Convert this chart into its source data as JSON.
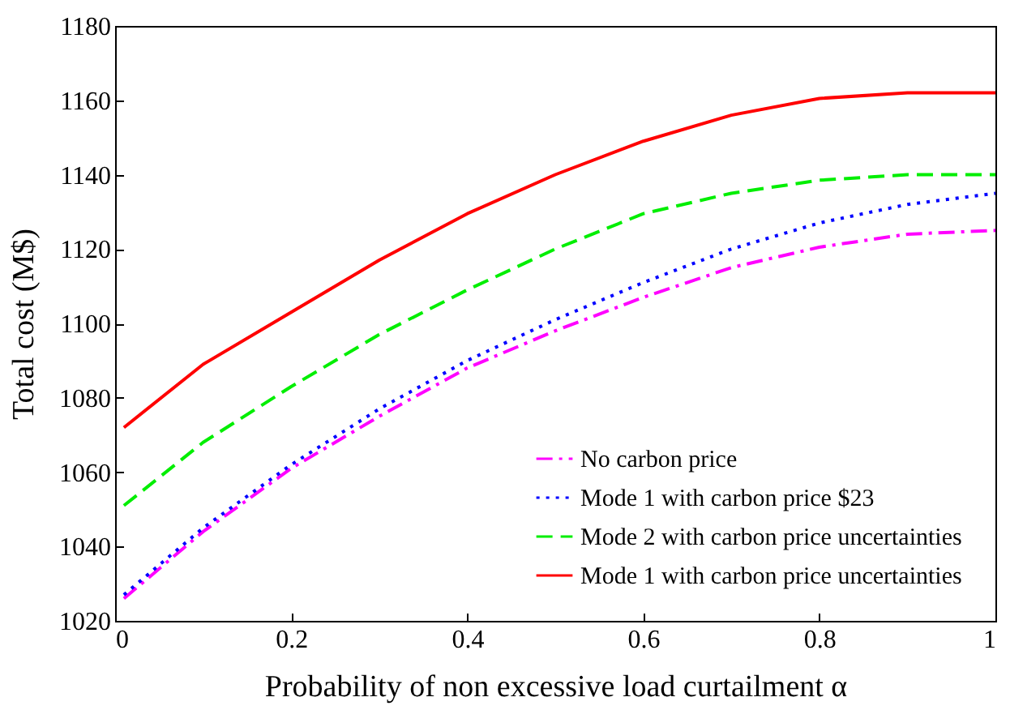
{
  "chart_data": {
    "type": "line",
    "xlabel": "Probability of non excessive load curtailment α",
    "ylabel": "Total cost (M$)",
    "x": [
      0.01,
      0.1,
      0.2,
      0.3,
      0.4,
      0.5,
      0.6,
      0.7,
      0.8,
      0.9,
      1.0
    ],
    "series": [
      {
        "name": "No carbon price",
        "color": "#ff00ff",
        "line_style": "dashdot",
        "values": [
          1026,
          1044,
          1061,
          1075,
          1088,
          1098,
          1107,
          1115,
          1120.5,
          1124,
          1125
        ]
      },
      {
        "name": "Mode 1 with carbon price $23",
        "color": "#0000ff",
        "line_style": "dotted",
        "values": [
          1027,
          1045,
          1062,
          1077,
          1090,
          1101,
          1111,
          1120,
          1127,
          1132,
          1135
        ]
      },
      {
        "name": "Mode 2 with carbon price uncertainties",
        "color": "#00ee00",
        "line_style": "dashed",
        "values": [
          1051,
          1068,
          1083,
          1097,
          1109,
          1120,
          1129.5,
          1135,
          1138.5,
          1140,
          1140
        ]
      },
      {
        "name": "Mode 1 with carbon price uncertainties",
        "color": "#ff0000",
        "line_style": "solid",
        "values": [
          1072,
          1089,
          1103,
          1117,
          1129.5,
          1140,
          1149,
          1156,
          1160.5,
          1162,
          1162
        ]
      }
    ],
    "xlim": [
      0,
      1
    ],
    "xticks": [
      0,
      0.2,
      0.4,
      0.6,
      0.8,
      1
    ],
    "ylim": [
      1020,
      1180
    ],
    "yticks": [
      1020,
      1040,
      1060,
      1080,
      1100,
      1120,
      1140,
      1160,
      1180
    ],
    "grid": false,
    "legend": "bottom right"
  }
}
